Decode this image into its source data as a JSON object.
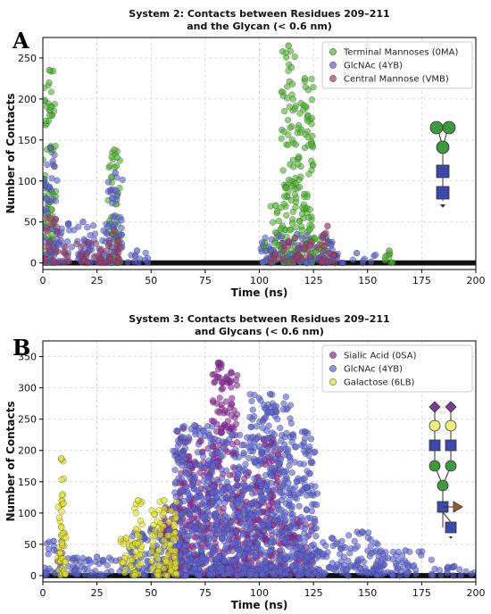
{
  "chart_data": [
    {
      "panel_letter": "A",
      "type": "scatter",
      "title_line1": "System 2: Contacts between Residues 209–211",
      "title_line2": "and the Glycan (< 0.6 nm)",
      "xlabel": "Time (ns)",
      "ylabel": "Number of Contacts",
      "xlim": [
        0,
        200
      ],
      "ylim": [
        -8,
        275
      ],
      "xticks": [
        "0",
        "25",
        "50",
        "75",
        "100",
        "125",
        "150",
        "175",
        "200"
      ],
      "yticks": [
        "0",
        "50",
        "100",
        "150",
        "200",
        "250"
      ],
      "grid": true,
      "legend_position": "top-right",
      "series": [
        {
          "name": "Terminal Mannoses (0MA)",
          "color": "#4cb82c",
          "clusters": [
            [
              0,
              6,
              235
            ],
            [
              30,
              36,
              138
            ],
            [
              101,
              104,
              25
            ],
            [
              105,
              110,
              70
            ],
            [
              110,
              117,
              265
            ],
            [
              117,
              125,
              225
            ],
            [
              125,
              135,
              35
            ],
            [
              158,
              162,
              15
            ]
          ]
        },
        {
          "name": "GlcNAc (4YB)",
          "color": "#5a63d6",
          "clusters": [
            [
              0,
              7,
              140
            ],
            [
              7,
              30,
              50
            ],
            [
              30,
              37,
              110
            ],
            [
              37,
              50,
              15
            ],
            [
              100,
              135,
              35
            ],
            [
              135,
              155,
              12
            ]
          ]
        },
        {
          "name": "Central Mannose (VMB)",
          "color": "#9c3f6e",
          "clusters": [
            [
              0,
              7,
              55
            ],
            [
              7,
              35,
              25
            ],
            [
              30,
              36,
              40
            ],
            [
              105,
              128,
              30
            ],
            [
              128,
              135,
              45
            ]
          ]
        }
      ],
      "glycan_icon": "high-mannose-glycan-icon"
    },
    {
      "panel_letter": "B",
      "type": "scatter",
      "title_line1": "System 3: Contacts between Residues 209–211",
      "title_line2": "and Glycans (< 0.6 nm)",
      "xlabel": "Time (ns)",
      "ylabel": "Number of Contacts",
      "xlim": [
        0,
        200
      ],
      "ylim": [
        -10,
        375
      ],
      "xticks": [
        "0",
        "25",
        "50",
        "75",
        "100",
        "125",
        "150",
        "175",
        "200"
      ],
      "yticks": [
        "0",
        "50",
        "100",
        "150",
        "200",
        "250",
        "300",
        "350"
      ],
      "grid": true,
      "legend_position": "top-right",
      "series": [
        {
          "name": "Sialic Acid (0SA)",
          "color": "#8e2a9c",
          "clusters": [
            [
              55,
              65,
              110
            ],
            [
              62,
              68,
              235
            ],
            [
              68,
              78,
              215
            ],
            [
              78,
              84,
              340
            ],
            [
              84,
              90,
              325
            ],
            [
              90,
              100,
              165
            ],
            [
              100,
              110,
              220
            ],
            [
              110,
              125,
              90
            ]
          ]
        },
        {
          "name": "GlcNAc (4YB)",
          "color": "#5a63d6",
          "clusters": [
            [
              0,
              10,
              55
            ],
            [
              10,
              40,
              30
            ],
            [
              40,
              60,
              75
            ],
            [
              60,
              80,
              240
            ],
            [
              80,
              95,
              225
            ],
            [
              95,
              115,
              290
            ],
            [
              115,
              127,
              230
            ],
            [
              127,
              140,
              60
            ],
            [
              140,
              155,
              70
            ],
            [
              155,
              180,
              40
            ],
            [
              180,
              200,
              15
            ]
          ]
        },
        {
          "name": "Galactose (6LB)",
          "color": "#e3e31e",
          "clusters": [
            [
              7,
              10,
              187
            ],
            [
              8,
              11,
              115
            ],
            [
              35,
              42,
              60
            ],
            [
              42,
              46,
              120
            ],
            [
              50,
              62,
              120
            ]
          ]
        }
      ],
      "glycan_icon": "complex-sialylated-glycan-icon"
    }
  ]
}
